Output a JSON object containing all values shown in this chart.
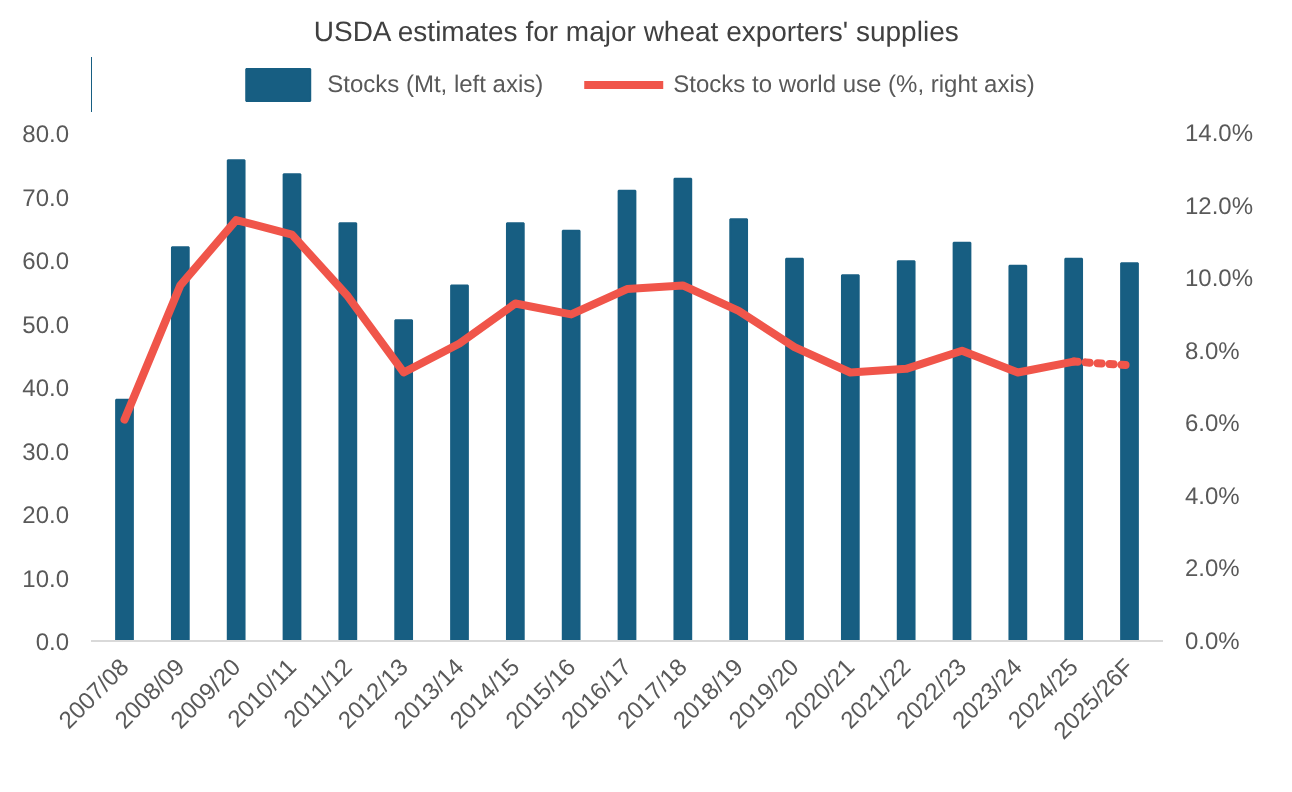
{
  "chart_data": {
    "type": "bar",
    "title": "USDA estimates for major wheat exporters' supplies",
    "categories": [
      "2007/08",
      "2008/09",
      "2009/20",
      "2010/11",
      "2011/12",
      "2012/13",
      "2013/14",
      "2014/15",
      "2015/16",
      "2016/17",
      "2017/18",
      "2018/19",
      "2019/20",
      "2020/21",
      "2021/22",
      "2022/23",
      "2023/24",
      "2024/25",
      "2025/26F"
    ],
    "series": [
      {
        "name": "Stocks (Mt, left axis)",
        "color": "#175e82",
        "values": [
          38.0,
          62.0,
          75.7,
          73.5,
          65.8,
          50.5,
          56.0,
          65.8,
          64.6,
          70.9,
          72.8,
          66.4,
          60.2,
          57.6,
          59.8,
          62.7,
          59.1,
          60.2,
          59.5
        ]
      },
      {
        "name": "Stocks to world use (%, right axis)",
        "type": "line",
        "axis": "y2",
        "color": "#f0554a",
        "line_style": "solid",
        "values": [
          6.1,
          9.8,
          11.6,
          11.2,
          9.5,
          7.4,
          8.2,
          9.3,
          9.0,
          9.7,
          9.8,
          9.1,
          8.1,
          7.4,
          7.5,
          8.0,
          7.4,
          7.7,
          null
        ]
      },
      {
        "type": "line",
        "axis": "y2",
        "color": "#f0554a",
        "line_style": "dotted",
        "values": [
          null,
          null,
          null,
          null,
          null,
          null,
          null,
          null,
          null,
          null,
          null,
          null,
          null,
          null,
          null,
          null,
          null,
          7.7,
          7.6
        ]
      }
    ],
    "ylim": [
      0,
      80
    ],
    "yticks": [
      {
        "value": 0,
        "label": "0.0"
      },
      {
        "value": 10,
        "label": "10.0"
      },
      {
        "value": 20,
        "label": "20.0"
      },
      {
        "value": 30,
        "label": "30.0"
      },
      {
        "value": 40,
        "label": "40.0"
      },
      {
        "value": 50,
        "label": "50.0"
      },
      {
        "value": 60,
        "label": "60.0"
      },
      {
        "value": 70,
        "label": "70.0"
      },
      {
        "value": 80,
        "label": "80.0"
      }
    ],
    "y2lim": [
      0,
      14
    ],
    "y2ticks": [
      {
        "value": 0,
        "label": "0.0%"
      },
      {
        "value": 2,
        "label": "2.0%"
      },
      {
        "value": 4,
        "label": "4.0%"
      },
      {
        "value": 6,
        "label": "6.0%"
      },
      {
        "value": 8,
        "label": "8.0%"
      },
      {
        "value": 10,
        "label": "10.0%"
      },
      {
        "value": 12,
        "label": "12.0%"
      },
      {
        "value": 14,
        "label": "14.0%"
      }
    ],
    "legend": "top",
    "grid": false
  }
}
